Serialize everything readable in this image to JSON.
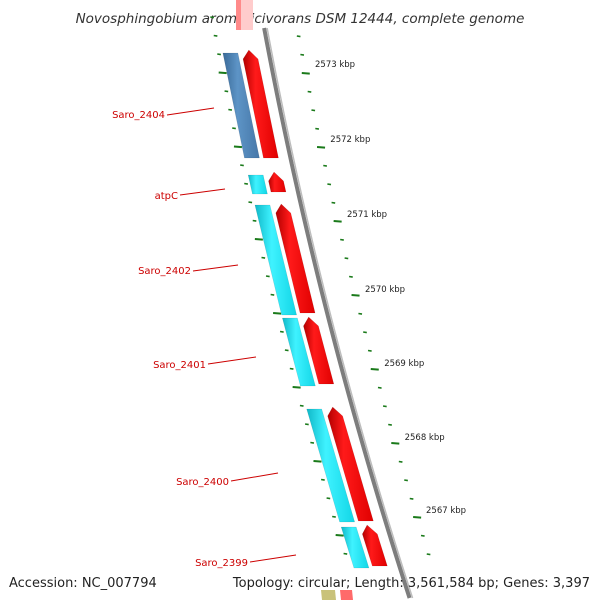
{
  "title": "Novosphingobium aromaticivorans DSM 12444, complete genome",
  "footer": {
    "accession": "Accession: NC_007794",
    "summary": "Topology: circular; Length: 3,561,584 bp; Genes: 3,397"
  },
  "scale_labels": [
    "2573 kbp",
    "2572 kbp",
    "2571 kbp",
    "2570 kbp",
    "2569 kbp",
    "2568 kbp",
    "2567 kbp"
  ],
  "gene_labels": [
    "Saro_2404",
    "atpC",
    "Saro_2402",
    "Saro_2401",
    "Saro_2400",
    "Saro_2399"
  ],
  "colors": {
    "forward_cds": "#ee1111",
    "cyan_feature": "#22e6f0",
    "blue_feature": "#4a7fb0",
    "backbone": "#888888",
    "tick_green": "#1a7a1a",
    "label_red": "#cc0000"
  }
}
